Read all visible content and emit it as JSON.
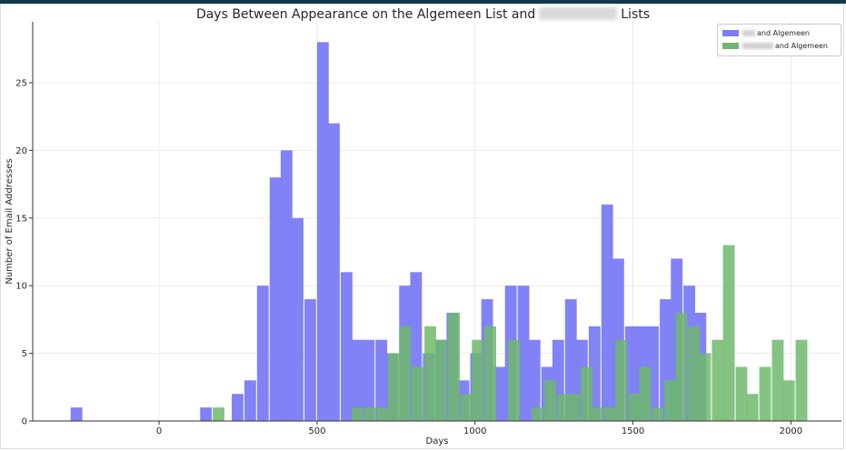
{
  "chart_data": {
    "type": "bar",
    "title_start": "Days Between Appearance on the Algemeen List and",
    "title_end": "Lists",
    "xlabel": "Days",
    "ylabel": "Number of Email Addresses",
    "xlim": [
      -400,
      2160
    ],
    "ylim": [
      0,
      29.5
    ],
    "xticks": [
      0,
      500,
      1000,
      1500,
      2000
    ],
    "yticks": [
      0,
      5,
      10,
      15,
      20,
      25
    ],
    "grid": true,
    "legend_position": "top-right",
    "bin_width": 37,
    "series": [
      {
        "name": "and Algemeen",
        "color": "#7b7bf7",
        "bins": [
          [
            -280,
            1
          ],
          [
            130,
            1
          ],
          [
            230,
            2
          ],
          [
            270,
            3
          ],
          [
            310,
            10
          ],
          [
            350,
            18
          ],
          [
            385,
            20
          ],
          [
            420,
            15
          ],
          [
            460,
            9
          ],
          [
            500,
            28
          ],
          [
            535,
            22
          ],
          [
            575,
            11
          ],
          [
            610,
            6
          ],
          [
            645,
            6
          ],
          [
            685,
            6
          ],
          [
            720,
            5
          ],
          [
            760,
            10
          ],
          [
            795,
            11
          ],
          [
            835,
            5
          ],
          [
            875,
            6
          ],
          [
            910,
            8
          ],
          [
            945,
            3
          ],
          [
            985,
            5
          ],
          [
            1020,
            9
          ],
          [
            1060,
            4
          ],
          [
            1095,
            10
          ],
          [
            1135,
            10
          ],
          [
            1170,
            6
          ],
          [
            1210,
            4
          ],
          [
            1245,
            6
          ],
          [
            1285,
            9
          ],
          [
            1320,
            6
          ],
          [
            1360,
            7
          ],
          [
            1400,
            16
          ],
          [
            1435,
            12
          ],
          [
            1475,
            7
          ],
          [
            1510,
            7
          ],
          [
            1545,
            7
          ],
          [
            1585,
            9
          ],
          [
            1620,
            12
          ],
          [
            1660,
            10
          ],
          [
            1695,
            8
          ]
        ]
      },
      {
        "name": "and Algemeen",
        "color": "#6fb86c",
        "bins": [
          [
            170,
            1
          ],
          [
            610,
            1
          ],
          [
            650,
            1
          ],
          [
            690,
            1
          ],
          [
            725,
            5
          ],
          [
            760,
            7
          ],
          [
            800,
            4
          ],
          [
            840,
            7
          ],
          [
            875,
            6
          ],
          [
            915,
            8
          ],
          [
            955,
            2
          ],
          [
            990,
            6
          ],
          [
            1030,
            7
          ],
          [
            1065,
            0
          ],
          [
            1105,
            6
          ],
          [
            1145,
            0
          ],
          [
            1180,
            1
          ],
          [
            1220,
            3
          ],
          [
            1260,
            2
          ],
          [
            1295,
            2
          ],
          [
            1335,
            4
          ],
          [
            1370,
            1
          ],
          [
            1410,
            1
          ],
          [
            1445,
            6
          ],
          [
            1485,
            2
          ],
          [
            1520,
            4
          ],
          [
            1560,
            1
          ],
          [
            1600,
            3
          ],
          [
            1635,
            8
          ],
          [
            1675,
            7
          ],
          [
            1710,
            5
          ],
          [
            1750,
            6
          ],
          [
            1785,
            13
          ],
          [
            1825,
            4
          ],
          [
            1860,
            2
          ],
          [
            1900,
            4
          ],
          [
            1940,
            6
          ],
          [
            1975,
            3
          ],
          [
            2015,
            6
          ]
        ]
      }
    ]
  }
}
